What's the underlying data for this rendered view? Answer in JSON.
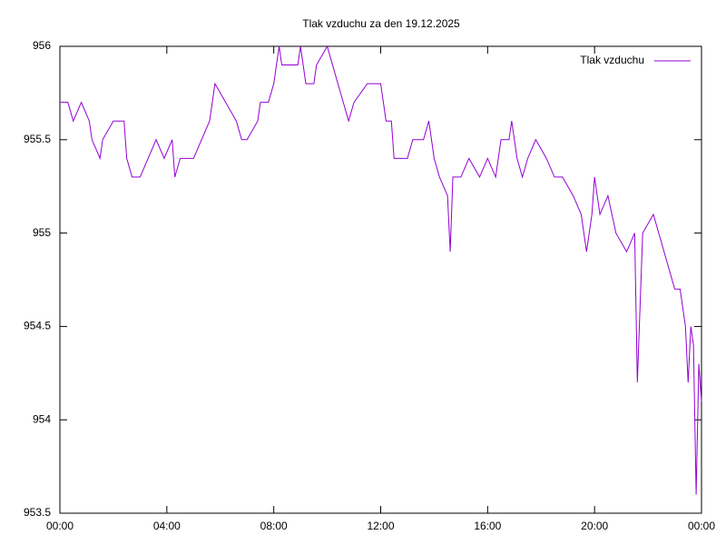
{
  "chart_data": {
    "type": "line",
    "title": "Tlak vzduchu za den 19.12.2025",
    "x": [
      0,
      0.3,
      0.5,
      0.8,
      1.1,
      1.2,
      1.5,
      1.6,
      2.0,
      2.2,
      2.4,
      2.5,
      2.7,
      3.0,
      3.3,
      3.6,
      3.9,
      4.2,
      4.3,
      4.5,
      5.0,
      5.3,
      5.6,
      5.8,
      6.2,
      6.6,
      6.8,
      7.0,
      7.4,
      7.5,
      7.8,
      8.0,
      8.2,
      8.3,
      8.9,
      9.0,
      9.2,
      9.5,
      9.6,
      10.0,
      10.2,
      10.4,
      10.8,
      11.0,
      11.5,
      12.0,
      12.2,
      12.4,
      12.5,
      13.0,
      13.2,
      13.6,
      13.8,
      14.0,
      14.2,
      14.5,
      14.6,
      14.7,
      15.0,
      15.3,
      15.7,
      16.0,
      16.3,
      16.5,
      16.8,
      16.9,
      17.1,
      17.3,
      17.5,
      17.8,
      18.2,
      18.5,
      18.8,
      19.2,
      19.5,
      19.7,
      19.9,
      20.0,
      20.2,
      20.5,
      20.8,
      21.2,
      21.5,
      21.6,
      21.8,
      22.2,
      22.4,
      22.6,
      22.8,
      23.0,
      23.2,
      23.4,
      23.5,
      23.6,
      23.7,
      23.8,
      23.9,
      24.0
    ],
    "series": [
      {
        "name": "Tlak vzduchu",
        "color": "#9400d3",
        "values": [
          955.7,
          955.7,
          955.6,
          955.7,
          955.6,
          955.5,
          955.4,
          955.5,
          955.6,
          955.6,
          955.6,
          955.4,
          955.3,
          955.3,
          955.4,
          955.5,
          955.4,
          955.5,
          955.3,
          955.4,
          955.4,
          955.5,
          955.6,
          955.8,
          955.7,
          955.6,
          955.5,
          955.5,
          955.6,
          955.7,
          955.7,
          955.8,
          956.0,
          955.9,
          955.9,
          956.0,
          955.8,
          955.8,
          955.9,
          956.0,
          955.9,
          955.8,
          955.6,
          955.7,
          955.8,
          955.8,
          955.6,
          955.6,
          955.4,
          955.4,
          955.5,
          955.5,
          955.6,
          955.4,
          955.3,
          955.2,
          954.9,
          955.3,
          955.3,
          955.4,
          955.3,
          955.4,
          955.3,
          955.5,
          955.5,
          955.6,
          955.4,
          955.3,
          955.4,
          955.5,
          955.4,
          955.3,
          955.3,
          955.2,
          955.1,
          954.9,
          955.1,
          955.3,
          955.1,
          955.2,
          955.0,
          954.9,
          955.0,
          954.2,
          955.0,
          955.1,
          955.0,
          954.9,
          954.8,
          954.7,
          954.7,
          954.5,
          954.2,
          954.5,
          954.4,
          953.6,
          954.3,
          954.1
        ]
      }
    ],
    "xlim": [
      0,
      24
    ],
    "xticks": [
      {
        "value": 0,
        "label": "00:00"
      },
      {
        "value": 4,
        "label": "04:00"
      },
      {
        "value": 8,
        "label": "08:00"
      },
      {
        "value": 12,
        "label": "12:00"
      },
      {
        "value": 16,
        "label": "16:00"
      },
      {
        "value": 20,
        "label": "20:00"
      },
      {
        "value": 24,
        "label": "00:00"
      }
    ],
    "ylim": [
      953.5,
      956
    ],
    "yticks": [
      953.5,
      954,
      954.5,
      955,
      955.5,
      956
    ],
    "grid": false,
    "legend": "top-right"
  }
}
